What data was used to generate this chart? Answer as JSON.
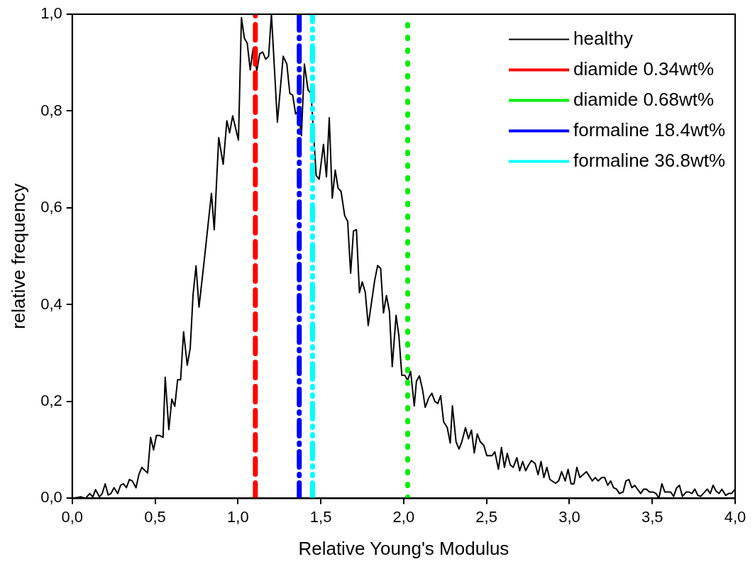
{
  "chart_data": {
    "type": "line",
    "xlabel": "Relative Young's Modulus",
    "ylabel": "relative frequency",
    "legend": "top right",
    "grid": false,
    "marker": "none",
    "xlim": [
      0,
      4
    ],
    "ylim": [
      0,
      1
    ],
    "xticks": [
      {
        "value": 0,
        "label": "0,0"
      },
      {
        "value": 0.5,
        "label": "0,5"
      },
      {
        "value": 1,
        "label": "1,0"
      },
      {
        "value": 1.5,
        "label": "1,5"
      },
      {
        "value": 2,
        "label": "2,0"
      },
      {
        "value": 2.5,
        "label": "2,5"
      },
      {
        "value": 3,
        "label": "3,0"
      },
      {
        "value": 3.5,
        "label": "3,5"
      },
      {
        "value": 4,
        "label": "4,0"
      }
    ],
    "yticks": [
      {
        "value": 0,
        "label": "0,0"
      },
      {
        "value": 0.2,
        "label": "0,2"
      },
      {
        "value": 0.4,
        "label": "0,4"
      },
      {
        "value": 0.6,
        "label": "0,6"
      },
      {
        "value": 0.8,
        "label": "0,8"
      },
      {
        "value": 1,
        "label": "1,0"
      }
    ],
    "series": [
      {
        "name": "healthy",
        "color": "#000000",
        "line_style": "solid",
        "x": [
          0,
          0.053,
          0.08,
          0.106,
          0.124,
          0.141,
          0.164,
          0.181,
          0.199,
          0.217,
          0.234,
          0.252,
          0.274,
          0.292,
          0.309,
          0.327,
          0.345,
          0.362,
          0.385,
          0.402,
          0.42,
          0.455,
          0.473,
          0.491,
          0.508,
          0.526,
          0.548,
          0.561,
          0.583,
          0.601,
          0.619,
          0.636,
          0.654,
          0.672,
          0.694,
          0.712,
          0.729,
          0.747,
          0.765,
          0.796,
          0.84,
          0.857,
          0.884,
          0.911,
          0.933,
          0.95,
          0.968,
          1.003,
          1.021,
          1.039,
          1.056,
          1.074,
          1.092,
          1.114,
          1.131,
          1.149,
          1.167,
          1.185,
          1.202,
          1.238,
          1.273,
          1.295,
          1.313,
          1.33,
          1.348,
          1.366,
          1.383,
          1.401,
          1.423,
          1.441,
          1.459,
          1.472,
          1.49,
          1.516,
          1.534,
          1.551,
          1.569,
          1.587,
          1.604,
          1.622,
          1.644,
          1.662,
          1.68,
          1.697,
          1.715,
          1.733,
          1.75,
          1.768,
          1.786,
          1.803,
          1.825,
          1.843,
          1.861,
          1.878,
          1.896,
          1.914,
          1.931,
          1.954,
          1.971,
          1.989,
          2.007,
          2.024,
          2.042,
          2.064,
          2.077,
          2.095,
          2.113,
          2.13,
          2.152,
          2.17,
          2.188,
          2.206,
          2.223,
          2.241,
          2.263,
          2.281,
          2.294,
          2.316,
          2.334,
          2.351,
          2.373,
          2.391,
          2.409,
          2.426,
          2.444,
          2.462,
          2.484,
          2.502,
          2.533,
          2.55,
          2.572,
          2.59,
          2.608,
          2.625,
          2.643,
          2.661,
          2.683,
          2.7,
          2.718,
          2.736,
          2.754,
          2.771,
          2.793,
          2.811,
          2.829,
          2.846,
          2.864,
          2.882,
          2.917,
          2.935,
          2.953,
          2.975,
          2.992,
          3.01,
          3.028,
          3.045,
          3.063,
          3.103,
          3.138,
          3.156,
          3.174,
          3.196,
          3.213,
          3.231,
          3.249,
          3.266,
          3.284,
          3.302,
          3.324,
          3.341,
          3.359,
          3.377,
          3.394,
          3.43,
          3.448,
          3.465,
          3.483,
          3.505,
          3.523,
          3.54,
          3.558,
          3.576,
          3.611,
          3.629,
          3.646,
          3.664,
          3.682,
          3.704,
          3.722,
          3.739,
          3.757,
          3.775,
          3.792,
          3.832,
          3.85,
          3.867,
          3.885,
          3.903,
          3.92,
          3.943,
          3.96,
          3.978,
          4.0
        ],
        "values": [
          0,
          0.003,
          0,
          0.01,
          0.003,
          0.018,
          0.003,
          0.01,
          0.03,
          0.007,
          0.01,
          0.022,
          0.01,
          0.027,
          0.03,
          0.022,
          0.039,
          0.036,
          0.022,
          0.049,
          0.064,
          0.052,
          0.126,
          0.1,
          0.13,
          0.13,
          0.126,
          0.25,
          0.142,
          0.205,
          0.19,
          0.245,
          0.245,
          0.344,
          0.275,
          0.31,
          0.42,
          0.48,
          0.395,
          0.49,
          0.63,
          0.555,
          0.745,
          0.69,
          0.78,
          0.755,
          0.79,
          0.74,
          0.993,
          0.95,
          0.94,
          0.885,
          0.93,
          0.883,
          0.918,
          0.922,
          0.907,
          0.913,
          1.0,
          0.777,
          0.913,
          0.897,
          0.836,
          0.833,
          0.794,
          0.8,
          0.749,
          0.897,
          0.843,
          0.837,
          0.738,
          0.667,
          0.659,
          0.731,
          0.664,
          0.786,
          0.62,
          0.678,
          0.641,
          0.634,
          0.584,
          0.572,
          0.465,
          0.552,
          0.555,
          0.425,
          0.447,
          0.426,
          0.357,
          0.398,
          0.45,
          0.481,
          0.475,
          0.383,
          0.419,
          0.386,
          0.272,
          0.378,
          0.336,
          0.254,
          0.254,
          0.244,
          0.262,
          0.191,
          0.242,
          0.253,
          0.226,
          0.188,
          0.208,
          0.217,
          0.2,
          0.196,
          0.212,
          0.158,
          0.146,
          0.114,
          0.191,
          0.117,
          0.102,
          0.117,
          0.146,
          0.123,
          0.141,
          0.094,
          0.133,
          0.117,
          0.109,
          0.088,
          0.088,
          0.096,
          0.06,
          0.105,
          0.064,
          0.093,
          0.069,
          0.064,
          0.084,
          0.057,
          0.076,
          0.057,
          0.069,
          0.078,
          0.072,
          0.049,
          0.076,
          0.043,
          0.064,
          0.039,
          0.031,
          0.036,
          0.055,
          0.036,
          0.06,
          0.03,
          0.03,
          0.064,
          0.043,
          0.055,
          0.036,
          0.043,
          0.036,
          0.043,
          0.043,
          0.027,
          0.036,
          0.022,
          0.019,
          0.01,
          0.013,
          0.036,
          0.039,
          0.022,
          0.027,
          0.01,
          0.019,
          0.019,
          0.013,
          0.013,
          0.01,
          0,
          0.03,
          0.013,
          0.013,
          0.004,
          0.021,
          0.027,
          0.004,
          0.013,
          0.013,
          0.01,
          0.019,
          0.006,
          0.004,
          0.019,
          0.01,
          0.027,
          0.015,
          0.01,
          0.019,
          0.006,
          0.01,
          0.01,
          0.019
        ]
      },
      {
        "name": "diamide 0.34wt%",
        "color": "#ff0000",
        "line_style": "dashed",
        "x": [
          1.105,
          1.105
        ],
        "values": [
          0,
          1
        ]
      },
      {
        "name": "diamide 0.68wt%",
        "color": "#00ee00",
        "line_style": "dotted",
        "x": [
          2.024,
          2.024
        ],
        "values": [
          0,
          1
        ]
      },
      {
        "name": "formaline 18.4wt%",
        "color": "#0000ff",
        "line_style": "dashdot",
        "x": [
          1.37,
          1.37
        ],
        "values": [
          0,
          1
        ]
      },
      {
        "name": "formaline 36.8wt%",
        "color": "#00ffff",
        "line_style": "dashdotdot",
        "x": [
          1.45,
          1.45
        ],
        "values": [
          0,
          1
        ]
      }
    ]
  }
}
